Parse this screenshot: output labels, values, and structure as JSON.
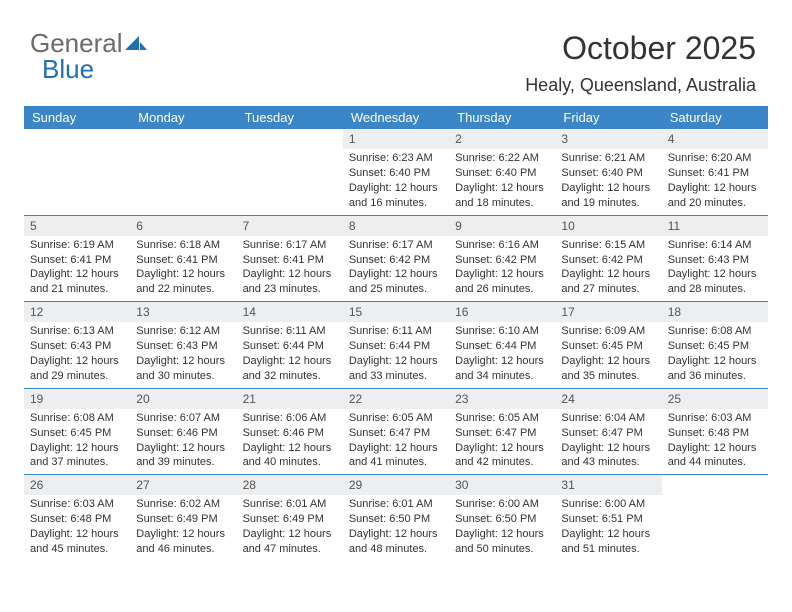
{
  "brand": {
    "part1": "General",
    "part2": "Blue"
  },
  "colors": {
    "brand_gray": "#6b6b6b",
    "brand_blue": "#1f6fb2",
    "header_bg": "#3b86c6",
    "header_text": "#ffffff",
    "daynum_bg": "#eceef0",
    "border": "#3b86c6",
    "text": "#333333",
    "background": "#ffffff"
  },
  "typography": {
    "month_fontsize": 32,
    "location_fontsize": 18,
    "dayhead_fontsize": 13,
    "cell_fontsize": 11,
    "logo_fontsize": 26
  },
  "title": "October 2025",
  "location": "Healy, Queensland, Australia",
  "calendar": {
    "type": "calendar-table",
    "columns": 7,
    "rows": 5,
    "day_headers": [
      "Sunday",
      "Monday",
      "Tuesday",
      "Wednesday",
      "Thursday",
      "Friday",
      "Saturday"
    ],
    "first_weekday_index": 3,
    "days": [
      {
        "n": 1,
        "sunrise": "6:23 AM",
        "sunset": "6:40 PM",
        "dl_h": 12,
        "dl_m": 16
      },
      {
        "n": 2,
        "sunrise": "6:22 AM",
        "sunset": "6:40 PM",
        "dl_h": 12,
        "dl_m": 18
      },
      {
        "n": 3,
        "sunrise": "6:21 AM",
        "sunset": "6:40 PM",
        "dl_h": 12,
        "dl_m": 19
      },
      {
        "n": 4,
        "sunrise": "6:20 AM",
        "sunset": "6:41 PM",
        "dl_h": 12,
        "dl_m": 20
      },
      {
        "n": 5,
        "sunrise": "6:19 AM",
        "sunset": "6:41 PM",
        "dl_h": 12,
        "dl_m": 21
      },
      {
        "n": 6,
        "sunrise": "6:18 AM",
        "sunset": "6:41 PM",
        "dl_h": 12,
        "dl_m": 22
      },
      {
        "n": 7,
        "sunrise": "6:17 AM",
        "sunset": "6:41 PM",
        "dl_h": 12,
        "dl_m": 23
      },
      {
        "n": 8,
        "sunrise": "6:17 AM",
        "sunset": "6:42 PM",
        "dl_h": 12,
        "dl_m": 25
      },
      {
        "n": 9,
        "sunrise": "6:16 AM",
        "sunset": "6:42 PM",
        "dl_h": 12,
        "dl_m": 26
      },
      {
        "n": 10,
        "sunrise": "6:15 AM",
        "sunset": "6:42 PM",
        "dl_h": 12,
        "dl_m": 27
      },
      {
        "n": 11,
        "sunrise": "6:14 AM",
        "sunset": "6:43 PM",
        "dl_h": 12,
        "dl_m": 28
      },
      {
        "n": 12,
        "sunrise": "6:13 AM",
        "sunset": "6:43 PM",
        "dl_h": 12,
        "dl_m": 29
      },
      {
        "n": 13,
        "sunrise": "6:12 AM",
        "sunset": "6:43 PM",
        "dl_h": 12,
        "dl_m": 30
      },
      {
        "n": 14,
        "sunrise": "6:11 AM",
        "sunset": "6:44 PM",
        "dl_h": 12,
        "dl_m": 32
      },
      {
        "n": 15,
        "sunrise": "6:11 AM",
        "sunset": "6:44 PM",
        "dl_h": 12,
        "dl_m": 33
      },
      {
        "n": 16,
        "sunrise": "6:10 AM",
        "sunset": "6:44 PM",
        "dl_h": 12,
        "dl_m": 34
      },
      {
        "n": 17,
        "sunrise": "6:09 AM",
        "sunset": "6:45 PM",
        "dl_h": 12,
        "dl_m": 35
      },
      {
        "n": 18,
        "sunrise": "6:08 AM",
        "sunset": "6:45 PM",
        "dl_h": 12,
        "dl_m": 36
      },
      {
        "n": 19,
        "sunrise": "6:08 AM",
        "sunset": "6:45 PM",
        "dl_h": 12,
        "dl_m": 37
      },
      {
        "n": 20,
        "sunrise": "6:07 AM",
        "sunset": "6:46 PM",
        "dl_h": 12,
        "dl_m": 39
      },
      {
        "n": 21,
        "sunrise": "6:06 AM",
        "sunset": "6:46 PM",
        "dl_h": 12,
        "dl_m": 40
      },
      {
        "n": 22,
        "sunrise": "6:05 AM",
        "sunset": "6:47 PM",
        "dl_h": 12,
        "dl_m": 41
      },
      {
        "n": 23,
        "sunrise": "6:05 AM",
        "sunset": "6:47 PM",
        "dl_h": 12,
        "dl_m": 42
      },
      {
        "n": 24,
        "sunrise": "6:04 AM",
        "sunset": "6:47 PM",
        "dl_h": 12,
        "dl_m": 43
      },
      {
        "n": 25,
        "sunrise": "6:03 AM",
        "sunset": "6:48 PM",
        "dl_h": 12,
        "dl_m": 44
      },
      {
        "n": 26,
        "sunrise": "6:03 AM",
        "sunset": "6:48 PM",
        "dl_h": 12,
        "dl_m": 45
      },
      {
        "n": 27,
        "sunrise": "6:02 AM",
        "sunset": "6:49 PM",
        "dl_h": 12,
        "dl_m": 46
      },
      {
        "n": 28,
        "sunrise": "6:01 AM",
        "sunset": "6:49 PM",
        "dl_h": 12,
        "dl_m": 47
      },
      {
        "n": 29,
        "sunrise": "6:01 AM",
        "sunset": "6:50 PM",
        "dl_h": 12,
        "dl_m": 48
      },
      {
        "n": 30,
        "sunrise": "6:00 AM",
        "sunset": "6:50 PM",
        "dl_h": 12,
        "dl_m": 50
      },
      {
        "n": 31,
        "sunrise": "6:00 AM",
        "sunset": "6:51 PM",
        "dl_h": 12,
        "dl_m": 51
      }
    ],
    "labels": {
      "sunrise_prefix": "Sunrise: ",
      "sunset_prefix": "Sunset: ",
      "daylight_prefix": "Daylight: ",
      "hours_word": " hours",
      "and_word": "and ",
      "minutes_word": " minutes."
    }
  }
}
